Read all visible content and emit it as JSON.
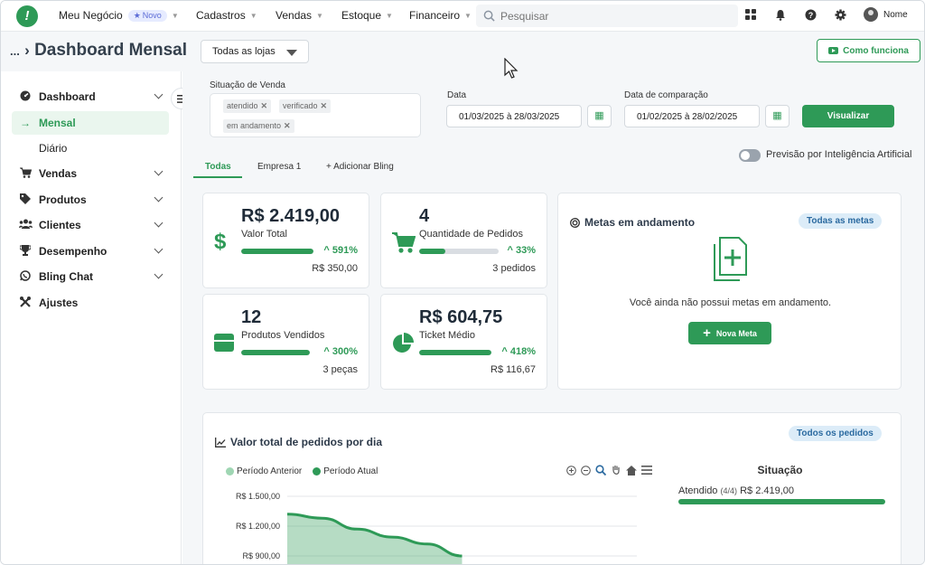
{
  "topnav": {
    "logo": "!",
    "items": [
      {
        "label": "Meu Negócio",
        "badge": "Novo"
      },
      {
        "label": "Cadastros"
      },
      {
        "label": "Vendas"
      },
      {
        "label": "Estoque"
      },
      {
        "label": "Financeiro"
      }
    ],
    "search_placeholder": "Pesquisar",
    "user_name": "Nome"
  },
  "header": {
    "breadcrumb_dots": "...",
    "title": "Dashboard Mensal",
    "store_select": "Todas as lojas",
    "how_button": "Como funciona"
  },
  "sidebar": {
    "items": [
      {
        "label": "Dashboard",
        "icon": "gauge-icon"
      },
      {
        "label": "Mensal",
        "icon": "arrow-right-icon"
      },
      {
        "label": "Diário"
      },
      {
        "label": "Vendas",
        "icon": "cart-icon"
      },
      {
        "label": "Produtos",
        "icon": "tag-icon"
      },
      {
        "label": "Clientes",
        "icon": "users-icon"
      },
      {
        "label": "Desempenho",
        "icon": "trophy-icon"
      },
      {
        "label": "Bling Chat",
        "icon": "whatsapp-icon"
      },
      {
        "label": "Ajustes",
        "icon": "tools-icon"
      }
    ]
  },
  "filters": {
    "status_label": "Situação de Venda",
    "chips": [
      "atendido",
      "verificado",
      "em andamento"
    ],
    "date_label": "Data",
    "date_value": "01/03/2025 à 28/03/2025",
    "compare_label": "Data de comparação",
    "compare_value": "01/02/2025 à 28/02/2025",
    "visualize_button": "Visualizar",
    "ai_toggle_label": "Previsão por Inteligência Artificial"
  },
  "tabs": [
    "Todas",
    "Empresa 1",
    "+ Adicionar Bling"
  ],
  "kpis": [
    {
      "value": "R$ 2.419,00",
      "label": "Valor Total",
      "pct": "591%",
      "sub": "R$ 350,00",
      "fill": 1.0,
      "icon": "dollar-icon"
    },
    {
      "value": "4",
      "label": "Quantidade de Pedidos",
      "pct": "33%",
      "sub": "3 pedidos",
      "fill": 0.33,
      "icon": "cart-icon"
    },
    {
      "value": "12",
      "label": "Produtos Vendidos",
      "pct": "300%",
      "sub": "3 peças",
      "fill": 1.0,
      "icon": "box-icon"
    },
    {
      "value": "R$ 604,75",
      "label": "Ticket Médio",
      "pct": "418%",
      "sub": "R$ 116,67",
      "fill": 1.0,
      "icon": "pie-icon"
    }
  ],
  "goals": {
    "title": "Metas em andamento",
    "all_button": "Todas as metas",
    "empty_text": "Você ainda não possui metas em andamento.",
    "new_button": "Nova Meta"
  },
  "orders_panel": {
    "title": "Valor total de pedidos por dia",
    "all_button": "Todos os pedidos",
    "status_title": "Situação",
    "status_items": [
      {
        "label": "Atendido",
        "count": "(4/4)",
        "value": "R$ 2.419,00",
        "fill": 1.0
      }
    ]
  },
  "chart_data": {
    "type": "area",
    "legend": [
      "Período Anterior",
      "Período Atual"
    ],
    "legend_position": "top-left",
    "y_ticks": [
      "R$ 1.500,00",
      "R$ 1.200,00",
      "R$ 900,00"
    ],
    "ylim": [
      900,
      1500
    ],
    "series": [
      {
        "name": "Período Atual",
        "x": [
          1,
          2,
          3,
          4,
          5,
          6
        ],
        "values": [
          1320,
          1280,
          1170,
          1090,
          1020,
          900
        ]
      }
    ],
    "colors": {
      "current": "#2e9a57",
      "previous": "#9fd6b3"
    },
    "grid": true
  }
}
